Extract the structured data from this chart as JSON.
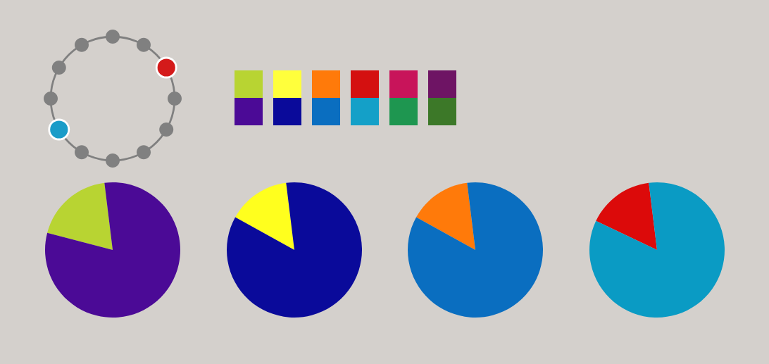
{
  "chart_data": [
    {
      "type": "pie",
      "categories": [
        null,
        null
      ],
      "values": [
        19,
        81
      ],
      "colors": [
        "#b8d432",
        "#4b0a96"
      ]
    },
    {
      "type": "pie",
      "categories": [
        null,
        null
      ],
      "values": [
        15,
        85
      ],
      "colors": [
        "#ffff1e",
        "#0a0a9a"
      ]
    },
    {
      "type": "pie",
      "categories": [
        null,
        null
      ],
      "values": [
        15,
        85
      ],
      "colors": [
        "#ff7a0a",
        "#0a6ec0"
      ]
    },
    {
      "type": "pie",
      "categories": [
        null,
        null
      ],
      "values": [
        16,
        84
      ],
      "colors": [
        "#dc0a0a",
        "#0a9bc4"
      ]
    }
  ]
}
